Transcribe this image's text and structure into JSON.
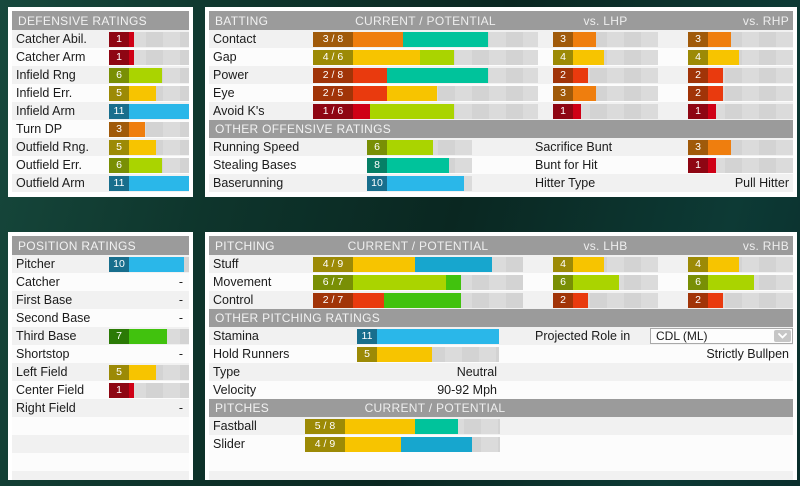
{
  "scale_max": 11,
  "accent_header_bg": "#9b9b9b",
  "rating_colors": {
    "1": {
      "bar": "#cf0016",
      "badge": "#8e0613"
    },
    "2": {
      "bar": "#e93a0e",
      "badge": "#a13408"
    },
    "3": {
      "bar": "#ef7e0e",
      "badge": "#a05a0a"
    },
    "4": {
      "bar": "#f7c400",
      "badge": "#9c8a06"
    },
    "5": {
      "bar": "#f7c400",
      "badge": "#9c8a06"
    },
    "6": {
      "bar": "#aad400",
      "badge": "#798f05"
    },
    "7": {
      "bar": "#41c20e",
      "badge": "#2b7a06"
    },
    "8": {
      "bar": "#00c39b",
      "badge": "#067f66"
    },
    "9": {
      "bar": "#17a6ce",
      "badge": "#11708e"
    },
    "10": {
      "bar": "#2ab7e9",
      "badge": "#186e8d"
    },
    "11": {
      "bar": "#2ab7e9",
      "badge": "#186e8d"
    }
  },
  "defensive": {
    "title": "DEFENSIVE RATINGS",
    "rows": [
      {
        "label": "Catcher Abil.",
        "value": 1
      },
      {
        "label": "Catcher Arm",
        "value": 1
      },
      {
        "label": "Infield Rng",
        "value": 6
      },
      {
        "label": "Infield Err.",
        "value": 5
      },
      {
        "label": "Infield Arm",
        "value": 11
      },
      {
        "label": "Turn DP",
        "value": 3
      },
      {
        "label": "Outfield Rng.",
        "value": 5
      },
      {
        "label": "Outfield Err.",
        "value": 6
      },
      {
        "label": "Outfield Arm",
        "value": 11
      }
    ]
  },
  "position": {
    "title": "POSITION RATINGS",
    "rows": [
      {
        "label": "Pitcher",
        "value": 10
      },
      {
        "label": "Catcher",
        "value": null
      },
      {
        "label": "First Base",
        "value": null
      },
      {
        "label": "Second Base",
        "value": null
      },
      {
        "label": "Third Base",
        "value": 7
      },
      {
        "label": "Shortstop",
        "value": null
      },
      {
        "label": "Left Field",
        "value": 5
      },
      {
        "label": "Center Field",
        "value": 1
      },
      {
        "label": "Right Field",
        "value": null
      }
    ],
    "no_rating_text": "-"
  },
  "batting": {
    "title": "BATTING",
    "cp_header": "CURRENT / POTENTIAL",
    "lh_header": "vs. LHP",
    "rh_header": "vs. RHP",
    "rows": [
      {
        "label": "Contact",
        "current": 3,
        "potential": 8,
        "lh": 3,
        "rh": 3
      },
      {
        "label": "Gap",
        "current": 4,
        "potential": 6,
        "lh": 4,
        "rh": 4
      },
      {
        "label": "Power",
        "current": 2,
        "potential": 8,
        "lh": 2,
        "rh": 2
      },
      {
        "label": "Eye",
        "current": 2,
        "potential": 5,
        "lh": 3,
        "rh": 2
      },
      {
        "label": "Avoid K's",
        "current": 1,
        "potential": 6,
        "lh": 1,
        "rh": 1
      }
    ],
    "other_title": "OTHER OFFENSIVE RATINGS",
    "other_rows": [
      {
        "left": {
          "label": "Running Speed",
          "value": 6
        },
        "right": {
          "label": "Sacrifice Bunt",
          "value": 3
        }
      },
      {
        "left": {
          "label": "Stealing Bases",
          "value": 8
        },
        "right": {
          "label": "Bunt for Hit",
          "value": 1
        }
      },
      {
        "left": {
          "label": "Baserunning",
          "value": 10
        },
        "right": {
          "label": "Hitter Type",
          "text": "Pull Hitter"
        }
      }
    ]
  },
  "pitching": {
    "title": "PITCHING",
    "cp_header": "CURRENT / POTENTIAL",
    "lh_header": "vs. LHB",
    "rh_header": "vs. RHB",
    "rows": [
      {
        "label": "Stuff",
        "current": 4,
        "potential": 9,
        "lh": 4,
        "rh": 4
      },
      {
        "label": "Movement",
        "current": 6,
        "potential": 7,
        "lh": 6,
        "rh": 6
      },
      {
        "label": "Control",
        "current": 2,
        "potential": 7,
        "lh": 2,
        "rh": 2
      }
    ],
    "other_title": "OTHER PITCHING RATINGS",
    "other_rows": [
      {
        "left": {
          "label": "Stamina",
          "value": 11
        },
        "right": {
          "label": "Projected Role in",
          "dropdown": "CDL (ML)"
        }
      },
      {
        "left": {
          "label": "Hold Runners",
          "value": 5
        },
        "right": {
          "text": "Strictly Bullpen"
        }
      },
      {
        "left": {
          "label": "Type",
          "text": "Neutral"
        }
      },
      {
        "left": {
          "label": "Velocity",
          "text": "90-92 Mph"
        }
      }
    ],
    "pitches_title": "PITCHES",
    "pitches_cp_header": "CURRENT / POTENTIAL",
    "pitches": [
      {
        "label": "Fastball",
        "current": 5,
        "potential": 8
      },
      {
        "label": "Slider",
        "current": 4,
        "potential": 9
      }
    ]
  }
}
